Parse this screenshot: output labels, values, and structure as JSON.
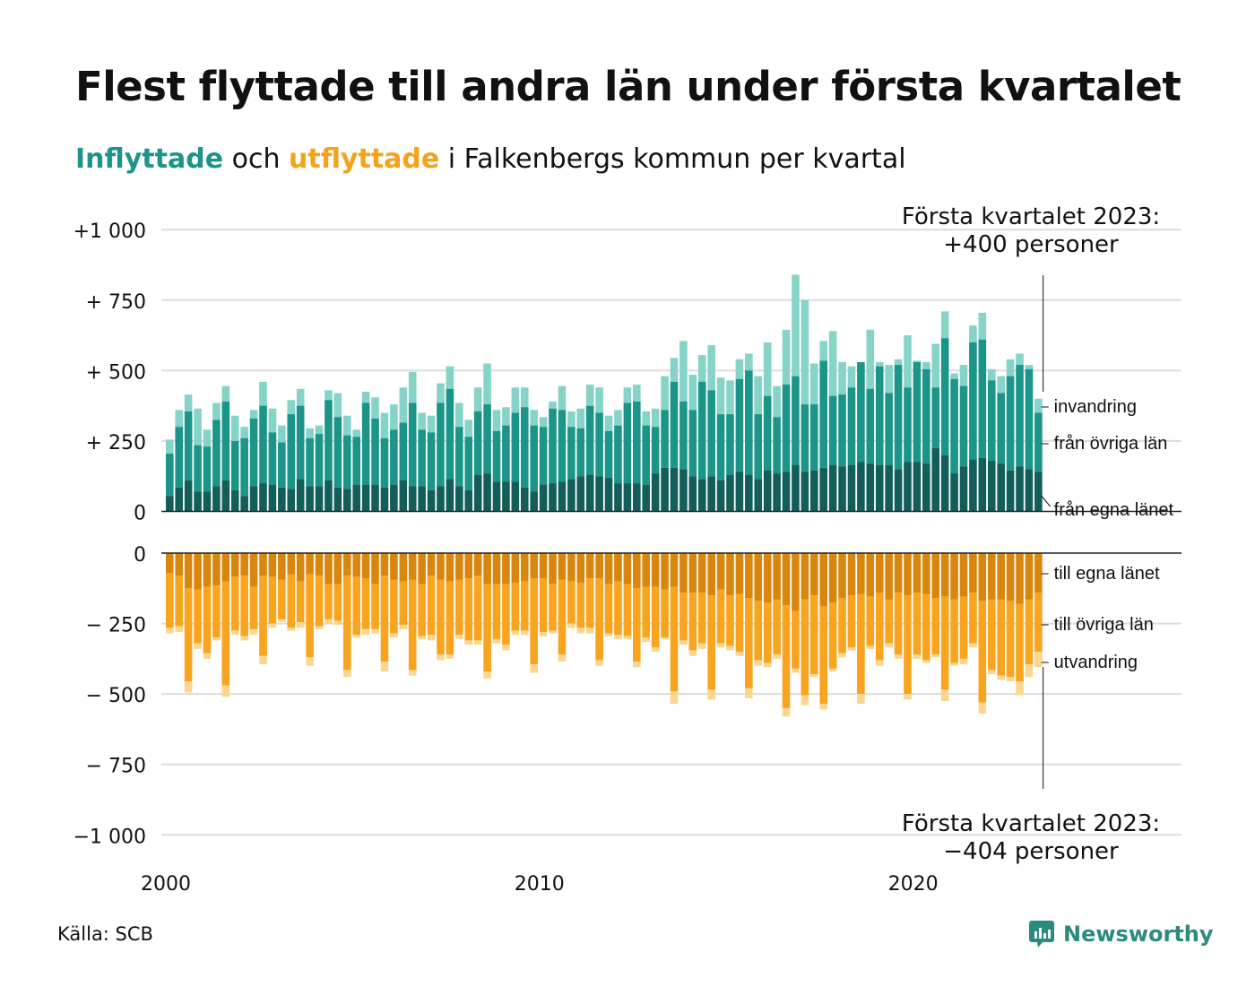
{
  "title": "Flest flyttade till andra län under första kvartalet",
  "subtitle": {
    "in_word": "Inflyttade",
    "and_word": " och ",
    "out_word": "utflyttade",
    "rest": " i Falkenbergs kommun per kvartal"
  },
  "source": "Källa: SCB",
  "brand": "Newsworthy",
  "colors": {
    "in_own": "#135e58",
    "in_other": "#1b9587",
    "in_imm": "#86d3c8",
    "out_own": "#d9860e",
    "out_other": "#f8a41f",
    "out_emi": "#fbd690"
  },
  "chart_data": {
    "type": "bar",
    "stacked": true,
    "x_start": "2000 Q1",
    "x_ticks": [
      "2000",
      "2010",
      "2020"
    ],
    "top_axis": {
      "ticks": [
        "+1 000",
        "+  750",
        "+  500",
        "+  250",
        "0"
      ],
      "ylim": [
        0,
        1000
      ]
    },
    "bottom_axis": {
      "ticks": [
        "0",
        "−  250",
        "−  500",
        "−  750",
        "−1 000"
      ],
      "ylim": [
        -1000,
        0
      ]
    },
    "grid": true,
    "annotations": {
      "top": [
        "Första kvartalet 2023:",
        "+400 personer"
      ],
      "bottom": [
        "Första kvartalet 2023:",
        "−404 personer"
      ]
    },
    "series_labels": {
      "in_imm": "invandring",
      "in_other": "från övriga län",
      "in_own": "från egna länet",
      "out_own": "till egna länet",
      "out_other": "till övriga län",
      "out_emi": "utvandring"
    },
    "inflow_total": [
      255,
      360,
      415,
      365,
      290,
      385,
      445,
      340,
      300,
      360,
      460,
      365,
      305,
      395,
      435,
      295,
      305,
      430,
      420,
      340,
      290,
      425,
      405,
      350,
      380,
      440,
      495,
      350,
      340,
      455,
      515,
      385,
      325,
      440,
      525,
      360,
      370,
      440,
      440,
      360,
      335,
      390,
      445,
      355,
      365,
      450,
      440,
      340,
      360,
      440,
      450,
      355,
      365,
      480,
      545,
      605,
      485,
      555,
      590,
      475,
      465,
      540,
      560,
      480,
      600,
      445,
      645,
      840,
      750,
      525,
      605,
      640,
      530,
      515,
      530,
      645,
      530,
      520,
      540,
      625,
      535,
      530,
      595,
      710,
      490,
      520,
      660,
      705,
      505,
      480,
      540,
      560,
      520,
      400
    ],
    "inflow_total_after_imm": [
      205,
      300,
      355,
      235,
      230,
      325,
      390,
      250,
      260,
      330,
      375,
      280,
      245,
      345,
      375,
      260,
      275,
      395,
      335,
      270,
      265,
      385,
      330,
      260,
      290,
      315,
      385,
      290,
      280,
      385,
      435,
      300,
      265,
      355,
      380,
      285,
      305,
      350,
      370,
      305,
      300,
      365,
      360,
      300,
      295,
      375,
      350,
      285,
      305,
      385,
      390,
      305,
      300,
      360,
      460,
      390,
      360,
      460,
      430,
      345,
      345,
      470,
      500,
      345,
      410,
      335,
      450,
      480,
      380,
      380,
      535,
      410,
      415,
      440,
      530,
      435,
      515,
      420,
      520,
      440,
      530,
      505,
      440,
      615,
      470,
      445,
      600,
      610,
      465,
      420,
      480,
      520,
      505,
      350
    ],
    "inflow_own": [
      55,
      85,
      110,
      70,
      70,
      90,
      110,
      75,
      55,
      90,
      100,
      95,
      85,
      80,
      115,
      90,
      90,
      110,
      85,
      80,
      95,
      95,
      95,
      85,
      95,
      110,
      90,
      90,
      75,
      90,
      115,
      90,
      75,
      130,
      135,
      105,
      105,
      105,
      85,
      70,
      95,
      100,
      105,
      115,
      125,
      130,
      125,
      120,
      100,
      100,
      100,
      95,
      135,
      155,
      155,
      150,
      125,
      115,
      125,
      110,
      130,
      140,
      130,
      115,
      145,
      135,
      140,
      165,
      140,
      145,
      155,
      165,
      160,
      165,
      175,
      170,
      165,
      165,
      150,
      175,
      175,
      170,
      225,
      200,
      135,
      160,
      185,
      190,
      180,
      170,
      145,
      160,
      150,
      140
    ],
    "outflow_own": [
      -70,
      -80,
      -125,
      -130,
      -120,
      -115,
      -100,
      -85,
      -80,
      -120,
      -80,
      -85,
      -95,
      -75,
      -100,
      -75,
      -80,
      -110,
      -110,
      -80,
      -85,
      -90,
      -110,
      -80,
      -95,
      -100,
      -95,
      -110,
      -80,
      -95,
      -100,
      -95,
      -90,
      -80,
      -110,
      -110,
      -110,
      -105,
      -100,
      -90,
      -90,
      -110,
      -95,
      -100,
      -105,
      -90,
      -90,
      -110,
      -100,
      -110,
      -125,
      -120,
      -120,
      -130,
      -120,
      -140,
      -140,
      -140,
      -150,
      -130,
      -150,
      -145,
      -160,
      -170,
      -175,
      -165,
      -185,
      -205,
      -165,
      -150,
      -190,
      -175,
      -160,
      -150,
      -145,
      -155,
      -140,
      -165,
      -140,
      -150,
      -140,
      -145,
      -160,
      -155,
      -165,
      -155,
      -140,
      -170,
      -165,
      -165,
      -170,
      -180,
      -165,
      -140
    ],
    "outflow_after_other": [
      -265,
      -260,
      -455,
      -320,
      -355,
      -300,
      -470,
      -275,
      -295,
      -270,
      -365,
      -250,
      -235,
      -265,
      -245,
      -370,
      -260,
      -235,
      -240,
      -415,
      -290,
      -270,
      -270,
      -385,
      -285,
      -255,
      -415,
      -295,
      -290,
      -360,
      -360,
      -290,
      -310,
      -310,
      -420,
      -305,
      -325,
      -275,
      -275,
      -395,
      -280,
      -275,
      -360,
      -250,
      -265,
      -265,
      -380,
      -285,
      -290,
      -295,
      -385,
      -300,
      -335,
      -300,
      -490,
      -310,
      -345,
      -320,
      -485,
      -320,
      -330,
      -350,
      -480,
      -380,
      -390,
      -360,
      -550,
      -410,
      -505,
      -430,
      -535,
      -410,
      -355,
      -335,
      -500,
      -330,
      -380,
      -320,
      -360,
      -500,
      -360,
      -380,
      -360,
      -485,
      -390,
      -375,
      -320,
      -530,
      -415,
      -435,
      -440,
      -455,
      -395,
      -350
    ],
    "outflow_total": [
      -285,
      -280,
      -495,
      -340,
      -375,
      -310,
      -510,
      -290,
      -310,
      -290,
      -395,
      -265,
      -245,
      -275,
      -265,
      -400,
      -270,
      -250,
      -255,
      -440,
      -300,
      -290,
      -285,
      -420,
      -300,
      -270,
      -435,
      -305,
      -310,
      -380,
      -375,
      -305,
      -325,
      -325,
      -445,
      -320,
      -345,
      -290,
      -290,
      -425,
      -295,
      -285,
      -385,
      -265,
      -285,
      -285,
      -400,
      -295,
      -305,
      -305,
      -405,
      -315,
      -350,
      -305,
      -535,
      -325,
      -365,
      -340,
      -520,
      -335,
      -345,
      -365,
      -515,
      -400,
      -405,
      -375,
      -580,
      -425,
      -540,
      -440,
      -555,
      -420,
      -370,
      -345,
      -535,
      -340,
      -400,
      -335,
      -375,
      -520,
      -375,
      -390,
      -370,
      -525,
      -400,
      -395,
      -335,
      -570,
      -430,
      -450,
      -455,
      -505,
      -440,
      -404
    ]
  }
}
